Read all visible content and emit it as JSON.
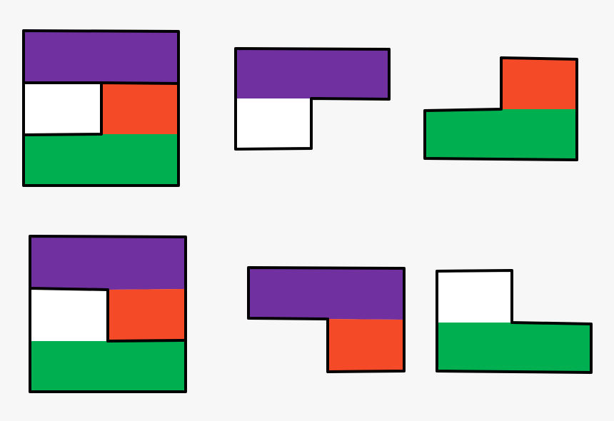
{
  "colors": {
    "background": "#f7f7f7",
    "purple": "#7030a0",
    "red": "#f44a28",
    "green": "#00b050",
    "white": "#ffffff",
    "outline": "#000000"
  },
  "shapes": [
    {
      "id": "square-top",
      "pieces": [
        "purple",
        "white",
        "red",
        "green"
      ]
    },
    {
      "id": "l-purple-white",
      "pieces": [
        "purple",
        "white"
      ]
    },
    {
      "id": "l-red-green",
      "pieces": [
        "red",
        "green"
      ]
    },
    {
      "id": "square-bottom",
      "pieces": [
        "purple",
        "white",
        "red",
        "green"
      ]
    },
    {
      "id": "l-purple-red",
      "pieces": [
        "purple",
        "red"
      ]
    },
    {
      "id": "l-white-green",
      "pieces": [
        "white",
        "green"
      ]
    }
  ]
}
